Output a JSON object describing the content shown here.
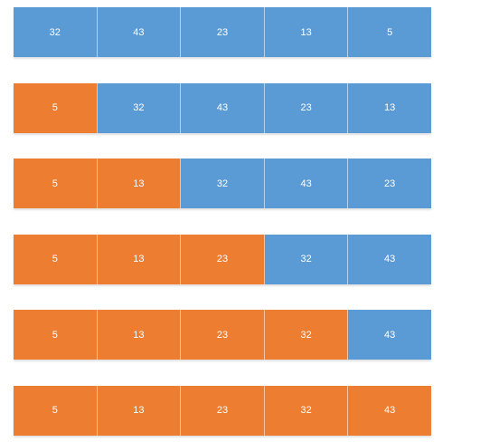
{
  "colors": {
    "sorted": "#ed7d31",
    "unsorted": "#5b9bd5"
  },
  "steps": [
    {
      "cells": [
        {
          "value": "32",
          "state": "unsorted"
        },
        {
          "value": "43",
          "state": "unsorted"
        },
        {
          "value": "23",
          "state": "unsorted"
        },
        {
          "value": "13",
          "state": "unsorted"
        },
        {
          "value": "5",
          "state": "unsorted"
        }
      ]
    },
    {
      "cells": [
        {
          "value": "5",
          "state": "sorted"
        },
        {
          "value": "32",
          "state": "unsorted"
        },
        {
          "value": "43",
          "state": "unsorted"
        },
        {
          "value": "23",
          "state": "unsorted"
        },
        {
          "value": "13",
          "state": "unsorted"
        }
      ]
    },
    {
      "cells": [
        {
          "value": "5",
          "state": "sorted"
        },
        {
          "value": "13",
          "state": "sorted"
        },
        {
          "value": "32",
          "state": "unsorted"
        },
        {
          "value": "43",
          "state": "unsorted"
        },
        {
          "value": "23",
          "state": "unsorted"
        }
      ]
    },
    {
      "cells": [
        {
          "value": "5",
          "state": "sorted"
        },
        {
          "value": "13",
          "state": "sorted"
        },
        {
          "value": "23",
          "state": "sorted"
        },
        {
          "value": "32",
          "state": "unsorted"
        },
        {
          "value": "43",
          "state": "unsorted"
        }
      ]
    },
    {
      "cells": [
        {
          "value": "5",
          "state": "sorted"
        },
        {
          "value": "13",
          "state": "sorted"
        },
        {
          "value": "23",
          "state": "sorted"
        },
        {
          "value": "32",
          "state": "sorted"
        },
        {
          "value": "43",
          "state": "unsorted"
        }
      ]
    },
    {
      "cells": [
        {
          "value": "5",
          "state": "sorted"
        },
        {
          "value": "13",
          "state": "sorted"
        },
        {
          "value": "23",
          "state": "sorted"
        },
        {
          "value": "32",
          "state": "sorted"
        },
        {
          "value": "43",
          "state": "sorted"
        }
      ]
    }
  ]
}
